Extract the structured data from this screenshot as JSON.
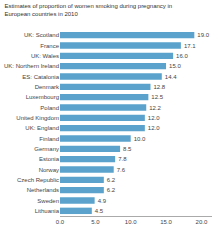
{
  "chart_data": {
    "type": "bar",
    "orientation": "horizontal",
    "title": "Estimates of proportion of women smoking during pregnancy in\nEuropean countries in 2010",
    "categories": [
      "Lithuania",
      "Sweden",
      "Netherlands",
      "Czech Republic",
      "Norway",
      "Estonia",
      "Germany",
      "Finland",
      "UK: England",
      "United Kingdom",
      "Poland",
      "Luxembourg",
      "Denmark",
      "ES: Catalonia",
      "UK: Northern Ireland",
      "UK: Wales",
      "France",
      "UK: Scotland"
    ],
    "values": [
      4.5,
      4.9,
      6.2,
      6.2,
      7.6,
      7.8,
      8.5,
      10.0,
      12.0,
      12.0,
      12.2,
      12.5,
      12.8,
      14.4,
      15.0,
      16.0,
      17.1,
      19.0
    ],
    "value_labels": [
      "4.5",
      "4.9",
      "6.2",
      "6.2",
      "7.6",
      "7.8",
      "8.5",
      "10.0",
      "12.0",
      "12.0",
      "12.2",
      "12.5",
      "12.8",
      "14.4",
      "15.0",
      "16.0",
      "17.1",
      "19.0"
    ],
    "data_labels": true,
    "color": "#5BA3CC",
    "xlim": [
      0,
      21.5
    ],
    "xticks": [
      {
        "value": 0,
        "label": "0.0"
      },
      {
        "value": 5,
        "label": "5.0"
      },
      {
        "value": 10,
        "label": "10.0"
      },
      {
        "value": 15,
        "label": "15.0"
      },
      {
        "value": 20,
        "label": "20.0"
      }
    ],
    "grid": false
  }
}
